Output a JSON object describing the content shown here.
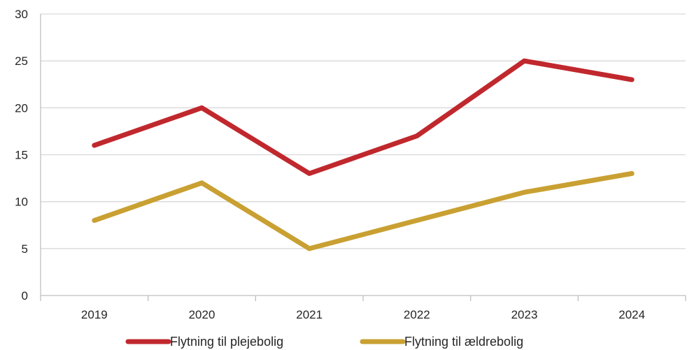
{
  "chart_data": {
    "type": "line",
    "title": "",
    "xlabel": "",
    "ylabel": "",
    "categories": [
      "2019",
      "2020",
      "2021",
      "2022",
      "2023",
      "2024"
    ],
    "ylim": [
      0,
      30
    ],
    "yticks": [
      0,
      5,
      10,
      15,
      20,
      25,
      30
    ],
    "grid": true,
    "legend_position": "bottom",
    "series": [
      {
        "name": "Flytning til plejebolig",
        "color": "#C0282D",
        "values": [
          16,
          20,
          13,
          17,
          25,
          23
        ]
      },
      {
        "name": "Flytning til ældrebolig",
        "color": "#C9A032",
        "values": [
          8,
          12,
          5,
          8,
          11,
          13
        ]
      }
    ]
  }
}
